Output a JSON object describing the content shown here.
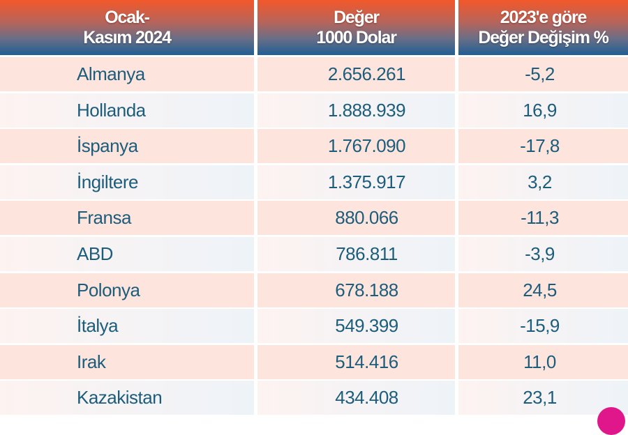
{
  "chart_data": {
    "type": "table",
    "columns": [
      {
        "line1": "Ocak-",
        "line2": "Kasım 2024"
      },
      {
        "line1": "Değer",
        "line2": "1000 Dolar"
      },
      {
        "line1": "2023'e göre",
        "line2": "Değer Değişim %"
      }
    ],
    "rows": [
      [
        "Almanya",
        "2.656.261",
        "-5,2"
      ],
      [
        "Hollanda",
        "1.888.939",
        "16,9"
      ],
      [
        "İspanya",
        "1.767.090",
        "-17,8"
      ],
      [
        "İngiltere",
        "1.375.917",
        "3,2"
      ],
      [
        "Fransa",
        "880.066",
        "-11,3"
      ],
      [
        "ABD",
        "786.811",
        "-3,9"
      ],
      [
        "Polonya",
        "678.188",
        "24,5"
      ],
      [
        "İtalya",
        "549.399",
        "-15,9"
      ],
      [
        "Irak",
        "514.416",
        "11,0"
      ],
      [
        "Kazakistan",
        "434.408",
        "23,1"
      ]
    ],
    "colors": {
      "header_top": "#f2582a",
      "header_bottom": "#1f5f94",
      "row_pink": "#fde5de",
      "row_light": "#eef3f8",
      "text": "#1c5d7c",
      "accent_dot": "#e0178a"
    }
  }
}
